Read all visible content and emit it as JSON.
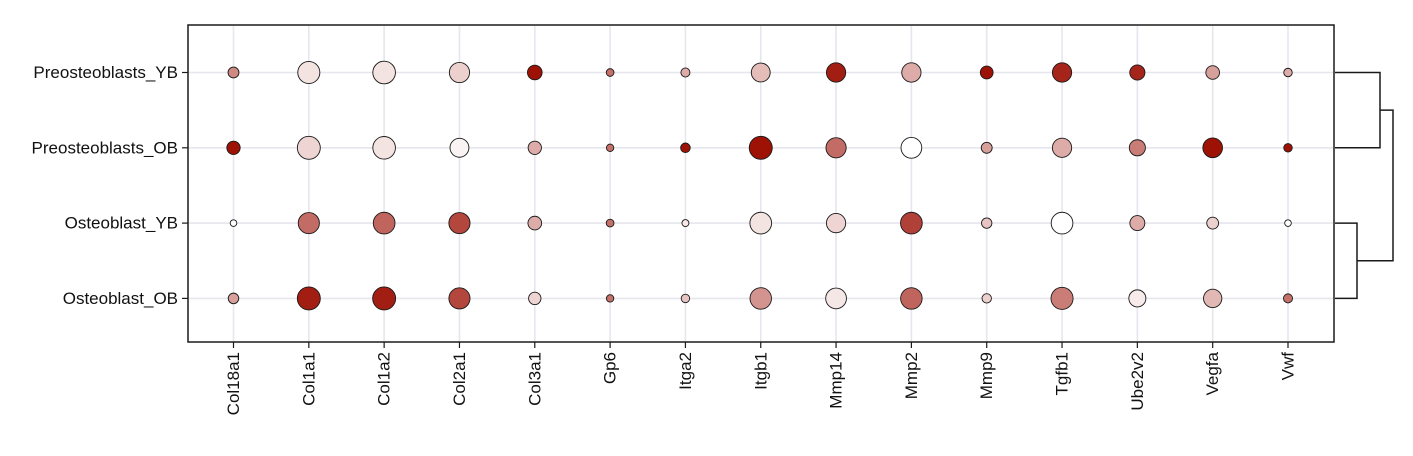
{
  "chart_data": {
    "type": "dotplot",
    "title": "",
    "xlabel": "",
    "ylabel": "",
    "grid": true,
    "legend": "none",
    "color_scale": {
      "low": "#ffffff",
      "high": "#9e1206"
    },
    "genes": [
      "Col18a1",
      "Col1a1",
      "Col1a2",
      "Col2a1",
      "Col3a1",
      "Gp6",
      "Itga2",
      "Itgb1",
      "Mmp14",
      "Mmp2",
      "Mmp9",
      "Tgfb1",
      "Ube2v2",
      "Vegfa",
      "Vwf"
    ],
    "groups": [
      "Preosteoblasts_YB",
      "Preosteoblasts_OB",
      "Osteoblast_YB",
      "Osteoblast_OB"
    ],
    "size_values": [
      [
        0.35,
        0.95,
        0.98,
        0.85,
        0.55,
        0.18,
        0.25,
        0.78,
        0.8,
        0.8,
        0.45,
        0.8,
        0.58,
        0.5,
        0.22
      ],
      [
        0.48,
        1.0,
        0.98,
        0.78,
        0.48,
        0.16,
        0.28,
        1.0,
        0.85,
        0.88,
        0.35,
        0.8,
        0.63,
        0.82,
        0.22
      ],
      [
        0.12,
        0.9,
        0.93,
        0.9,
        0.5,
        0.18,
        0.14,
        0.93,
        0.8,
        0.93,
        0.32,
        0.93,
        0.57,
        0.4,
        0.12
      ],
      [
        0.33,
        1.0,
        1.0,
        0.9,
        0.43,
        0.16,
        0.22,
        0.92,
        0.88,
        0.92,
        0.27,
        0.95,
        0.68,
        0.75,
        0.25
      ]
    ],
    "color_values": [
      [
        0.5,
        0.12,
        0.12,
        0.2,
        1.0,
        0.6,
        0.35,
        0.28,
        0.95,
        0.35,
        1.0,
        0.92,
        0.92,
        0.4,
        0.35
      ],
      [
        1.0,
        0.18,
        0.12,
        0.05,
        0.35,
        0.6,
        1.0,
        1.0,
        0.62,
        0.0,
        0.4,
        0.35,
        0.55,
        1.0,
        1.0
      ],
      [
        0.0,
        0.62,
        0.65,
        0.78,
        0.35,
        0.6,
        0.1,
        0.12,
        0.18,
        0.8,
        0.25,
        0.0,
        0.35,
        0.2,
        0.0
      ],
      [
        0.4,
        0.95,
        0.95,
        0.78,
        0.18,
        0.6,
        0.25,
        0.45,
        0.1,
        0.65,
        0.2,
        0.55,
        0.08,
        0.3,
        0.6
      ]
    ],
    "dendrogram": {
      "clusters": [
        [
          "Preosteoblasts_YB",
          "Preosteoblasts_OB"
        ],
        [
          "Osteoblast_YB",
          "Osteoblast_OB"
        ]
      ]
    }
  }
}
